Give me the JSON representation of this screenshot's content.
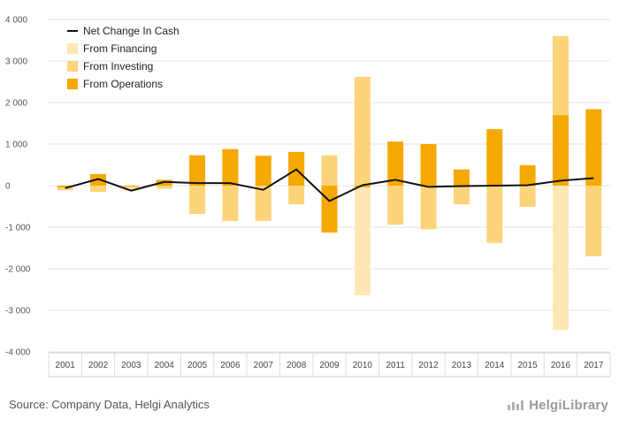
{
  "chart_data": {
    "type": "bar",
    "stacked": true,
    "categories": [
      "2001",
      "2002",
      "2003",
      "2004",
      "2005",
      "2006",
      "2007",
      "2008",
      "2009",
      "2010",
      "2011",
      "2012",
      "2013",
      "2014",
      "2015",
      "2016",
      "2017"
    ],
    "series": [
      {
        "name": "From Operations",
        "kind": "bar",
        "color": "#f5a800",
        "values": [
          -40,
          280,
          -20,
          140,
          730,
          880,
          720,
          810,
          -1130,
          -40,
          1060,
          1000,
          390,
          1360,
          490,
          1700,
          1840
        ]
      },
      {
        "name": "From Investing",
        "kind": "bar",
        "color": "#fdd47a",
        "values": [
          -70,
          -150,
          -30,
          -70,
          -680,
          -850,
          -850,
          -450,
          730,
          2620,
          -940,
          -1050,
          -450,
          -1380,
          -510,
          1900,
          -1700
        ]
      },
      {
        "name": "From Financing",
        "kind": "bar",
        "color": "#fde8b5",
        "values": [
          0,
          0,
          -70,
          0,
          0,
          0,
          0,
          0,
          0,
          -2600,
          0,
          0,
          0,
          0,
          0,
          -3480,
          0
        ]
      },
      {
        "name": "Net Change In Cash",
        "kind": "line",
        "color": "#111111",
        "values": [
          -60,
          160,
          -120,
          90,
          60,
          60,
          -100,
          390,
          -370,
          10,
          140,
          -30,
          -10,
          0,
          10,
          120,
          180
        ]
      }
    ],
    "legend_order": [
      "Net Change In Cash",
      "From Financing",
      "From Investing",
      "From Operations"
    ],
    "yticks": [
      4000,
      3000,
      2000,
      1000,
      0,
      -1000,
      -2000,
      -3000,
      -4000
    ],
    "ytick_labels": [
      "4 000",
      "3 000",
      "2 000",
      "1 000",
      "0",
      "-1 000",
      "-2 000",
      "-3 000",
      "-4 000"
    ],
    "ylim": [
      -4000,
      4000
    ],
    "xlabel": "",
    "ylabel": "",
    "legend_position": "top-left",
    "grid": true
  },
  "footer": {
    "source": "Source: Company Data, Helgi Analytics",
    "brand": "HelgiLibrary"
  }
}
